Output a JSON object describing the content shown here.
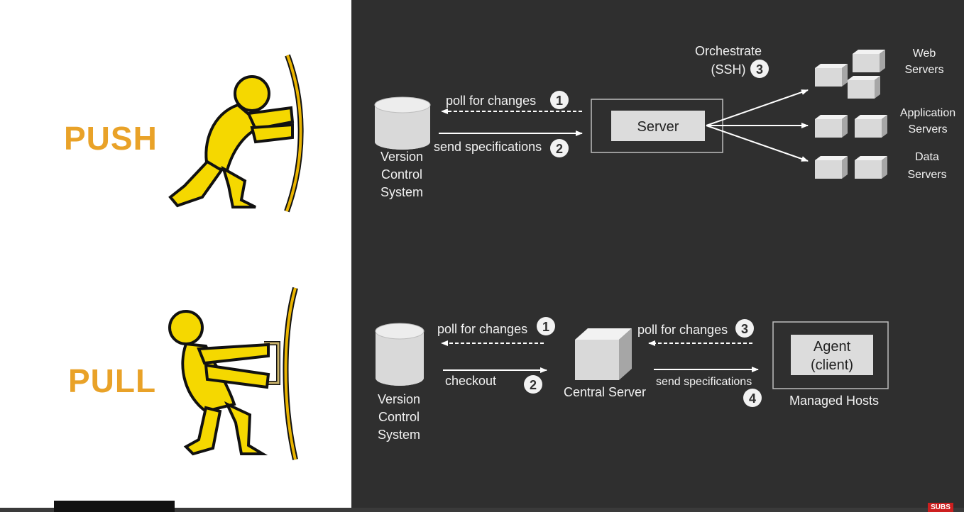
{
  "push_section": {
    "word": "PUSH",
    "vcs_label": [
      "Version",
      "Control",
      "System"
    ],
    "poll": {
      "text": "poll for changes",
      "step": "1"
    },
    "send": {
      "text": "send specifications",
      "step": "2"
    },
    "server_label": "Server",
    "orchestrate": {
      "line1": "Orchestrate",
      "line2": "(SSH)",
      "step": "3"
    },
    "groups": [
      {
        "line1": "Web",
        "line2": "Servers"
      },
      {
        "line1": "Application",
        "line2": "Servers"
      },
      {
        "line1": "Data",
        "line2": "Servers"
      }
    ]
  },
  "pull_section": {
    "word": "PULL",
    "vcs_label": [
      "Version",
      "Control",
      "System"
    ],
    "poll1": {
      "text": "poll for changes",
      "step": "1"
    },
    "checkout": {
      "text": "checkout",
      "step": "2"
    },
    "central_server": "Central Server",
    "poll3": {
      "text": "poll for changes",
      "step": "3"
    },
    "send": {
      "text": "send specifications",
      "step": "4"
    },
    "agent": {
      "line1": "Agent",
      "line2": "(client)"
    },
    "managed_hosts": "Managed Hosts"
  },
  "footer": {
    "badge": "SUBS"
  },
  "colors": {
    "accent_orange": "#E9A228",
    "figure_yellow": "#F5D800",
    "dark_bg": "#2f2f2f",
    "box_fill": "#dcdcdc"
  }
}
